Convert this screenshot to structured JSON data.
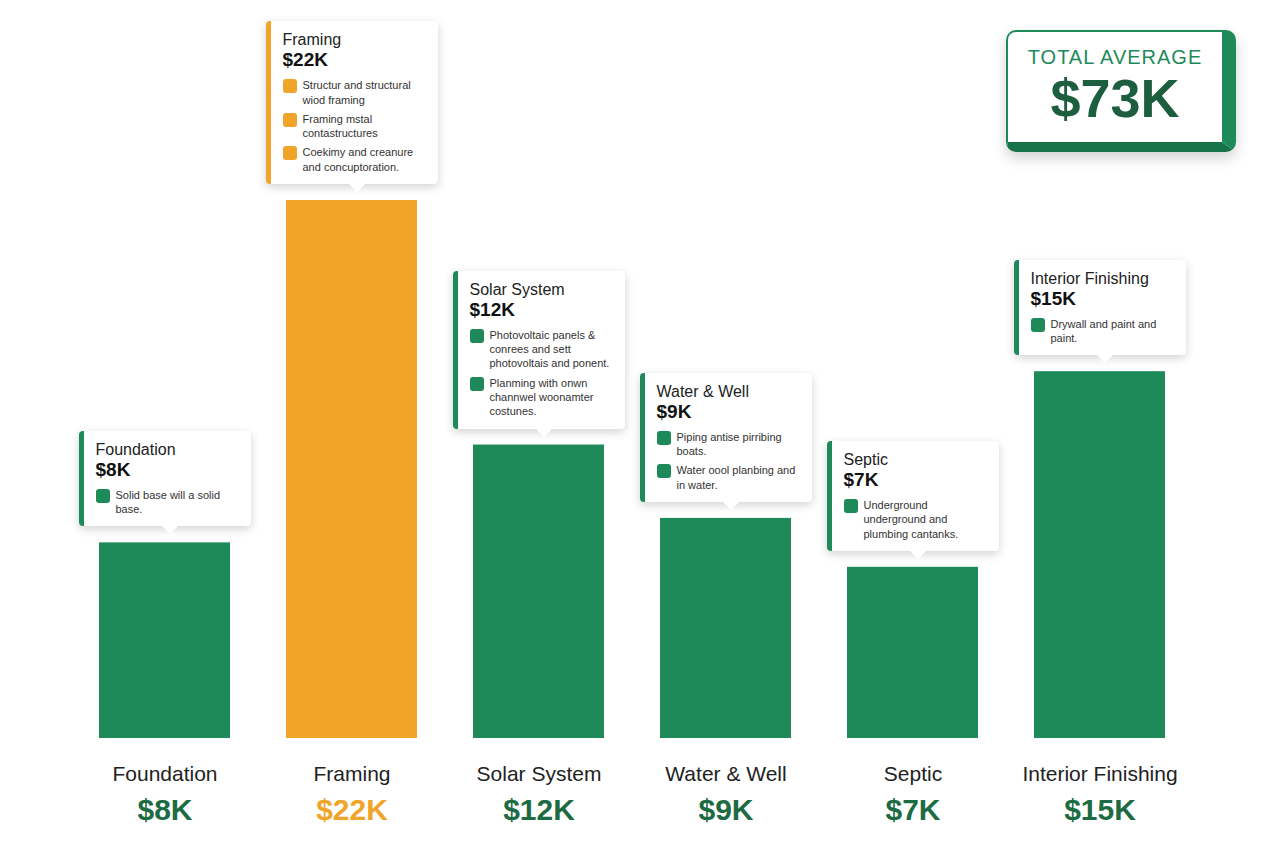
{
  "chart_data": {
    "type": "bar",
    "categories": [
      "Foundation",
      "Framing",
      "Solar System",
      "Water & Well",
      "Septic",
      "Interior Finishing"
    ],
    "values": [
      8,
      22,
      12,
      9,
      7,
      15
    ],
    "value_labels": [
      "$8K",
      "$22K",
      "$12K",
      "$9K",
      "$7K",
      "$15K"
    ],
    "colors": [
      "#1e8a5a",
      "#f0a52a",
      "#1e8a5a",
      "#1e8a5a",
      "#1e8a5a",
      "#1e8a5a"
    ],
    "data_labels": true,
    "tick_labels": "x",
    "annotations": [
      {
        "items": [
          "Solid base will a solid base."
        ]
      },
      {
        "items": [
          "Structur and structural wiod framing",
          "Framing mstal contastructures",
          "Coekimy and creanure and concuptoration."
        ]
      },
      {
        "items": [
          "Photovoltaic panels & conrees and sett photovoltais and ponent.",
          "Planming with onwn channwel woonamter costunes."
        ]
      },
      {
        "items": [
          "Piping antise pirribing boats.",
          "Water oool planbing and in water."
        ]
      },
      {
        "items": [
          "Underground underground and plumbing cantanks."
        ]
      },
      {
        "items": [
          "Drywall and paint and paint."
        ]
      }
    ],
    "total": {
      "label": "TOTAL AVERAGE",
      "value": 73,
      "value_label": "$73K"
    }
  }
}
